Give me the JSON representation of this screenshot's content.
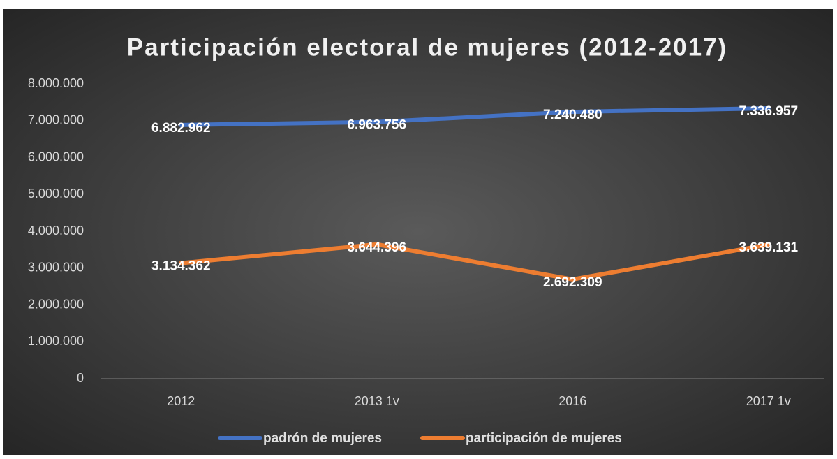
{
  "chart_data": {
    "type": "line",
    "title": "Participación electoral de mujeres (2012-2017)",
    "categories": [
      "2012",
      "2013 1v",
      "2016",
      "2017 1v"
    ],
    "series": [
      {
        "name": "padrón de mujeres",
        "color": "#4472c4",
        "values": [
          6882962,
          6963756,
          7240480,
          7336957
        ],
        "value_labels": [
          "6.882.962",
          "6.963.756",
          "7.240.480",
          "7.336.957"
        ]
      },
      {
        "name": "participación de mujeres",
        "color": "#ed7d31",
        "values": [
          3134362,
          3644396,
          2692309,
          3639131
        ],
        "value_labels": [
          "3.134.362",
          "3.644.396",
          "2.692.309",
          "3.639.131"
        ]
      }
    ],
    "ylim": [
      0,
      8000000
    ],
    "yticks": [
      0,
      {
        "value": 1000000,
        "label": "1.000.000"
      },
      {
        "value": 2000000,
        "label": "2.000.000"
      },
      {
        "value": 3000000,
        "label": "3.000.000"
      },
      {
        "value": 4000000,
        "label": "4.000.000"
      },
      {
        "value": 5000000,
        "label": "5.000.000"
      },
      {
        "value": 6000000,
        "label": "6.000.000"
      },
      {
        "value": 7000000,
        "label": "7.000.000"
      },
      {
        "value": 8000000,
        "label": "8.000.000"
      }
    ],
    "legend": "bottom"
  }
}
